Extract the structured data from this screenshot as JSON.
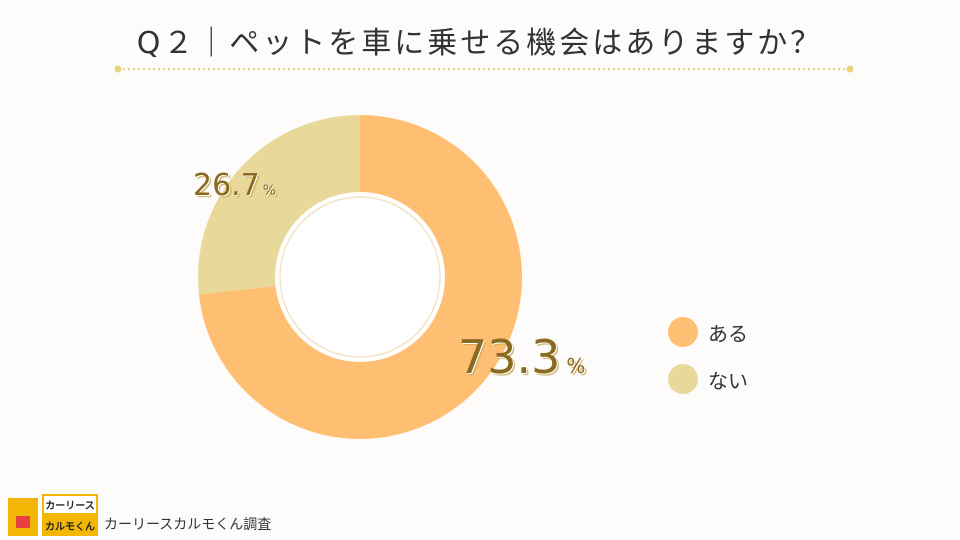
{
  "title": "Q２｜ペットを車に乗せる機会はありますか？",
  "chart_data": {
    "type": "pie",
    "title": "Q２｜ペットを車に乗せる機会はありますか？",
    "categories": [
      "ある",
      "ない"
    ],
    "values": [
      73.3,
      26.7
    ],
    "labels": [
      "73.3",
      "26.7"
    ],
    "unit": "%",
    "colors": [
      "#ffbf72",
      "#e8d99a"
    ],
    "legend": "right"
  },
  "footer": {
    "logo_top": "カーリース",
    "logo_bottom": "カルモくん",
    "source": "カーリースカルモくん調査"
  }
}
